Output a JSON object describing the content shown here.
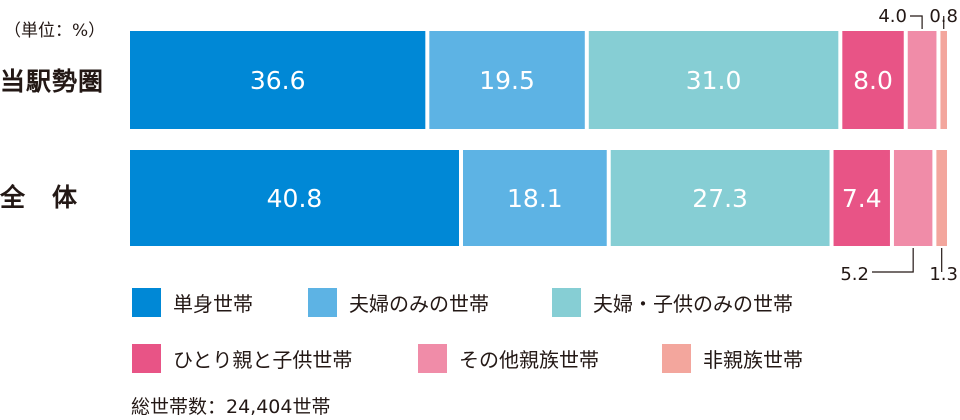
{
  "unit_label": "（単位：%）",
  "total_label": "総世帯数：24,404世帯",
  "colors": [
    "#0088d6",
    "#5db3e4",
    "#86ced4",
    "#e85486",
    "#f08ca8",
    "#f3a69d"
  ],
  "chart_data": {
    "type": "bar",
    "orientation": "horizontal",
    "stacked": true,
    "categories": [
      "当駅勢圏",
      "全　体"
    ],
    "series": [
      {
        "name": "単身世帯",
        "values": [
          36.6,
          40.8
        ],
        "labels": [
          "36.6",
          "40.8"
        ]
      },
      {
        "name": "夫婦のみの世帯",
        "values": [
          19.5,
          18.1
        ],
        "labels": [
          "19.5",
          "18.1"
        ]
      },
      {
        "name": "夫婦・子供のみの世帯",
        "values": [
          31.0,
          27.3
        ],
        "labels": [
          "31.0",
          "27.3"
        ]
      },
      {
        "name": "ひとり親と子供世帯",
        "values": [
          8.0,
          7.4
        ],
        "labels": [
          "8.0",
          "7.4"
        ]
      },
      {
        "name": "その他親族世帯",
        "values": [
          4.0,
          5.2
        ],
        "labels": [
          "4.0",
          "5.2"
        ]
      },
      {
        "name": "非親族世帯",
        "values": [
          0.8,
          1.3
        ],
        "labels": [
          "0.8",
          "1.3"
        ]
      }
    ],
    "xlim": [
      0,
      100
    ],
    "legend_position": "bottom"
  }
}
